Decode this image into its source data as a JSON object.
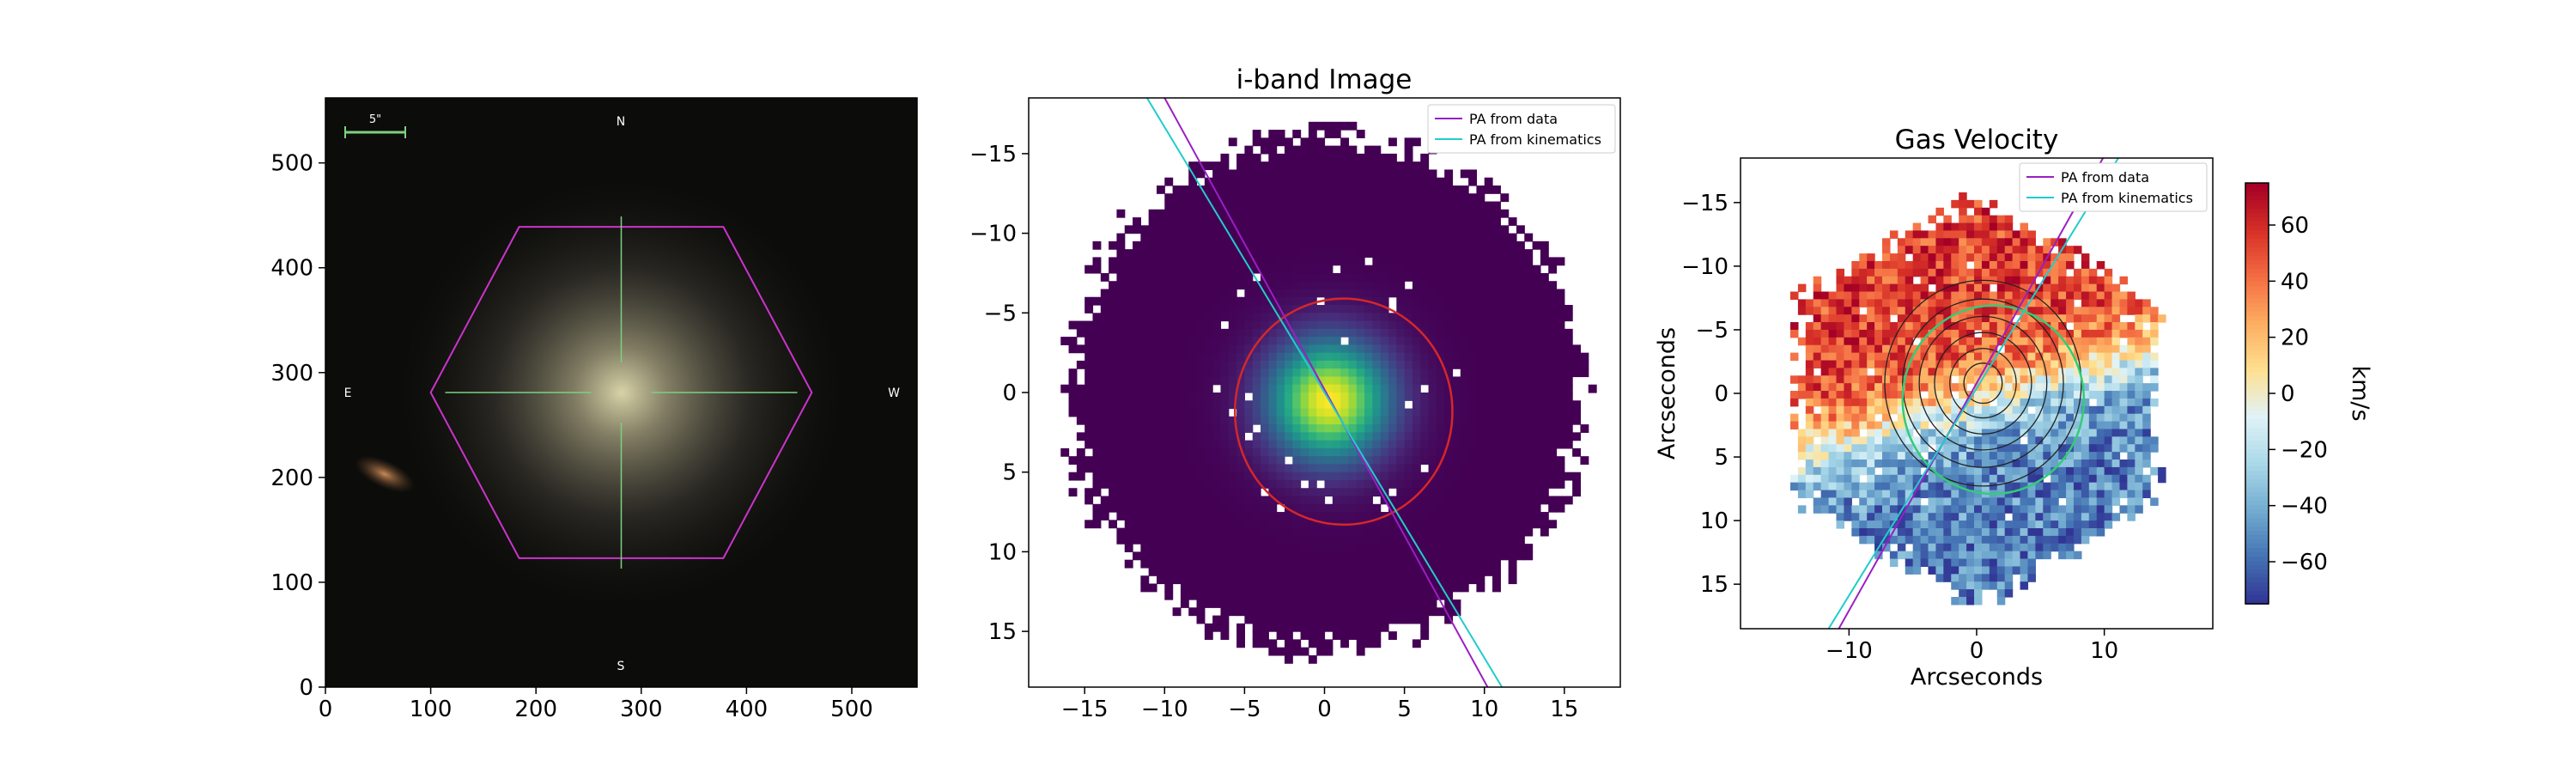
{
  "chart_data": [
    {
      "type": "image",
      "title": "",
      "xlim": [
        0,
        562
      ],
      "ylim": [
        562,
        0
      ],
      "xticks": [
        0,
        100,
        200,
        300,
        400,
        500
      ],
      "yticks": [
        0,
        100,
        200,
        300,
        400,
        500
      ],
      "background": "#0c0c0a",
      "scale_bar_label": "5\"",
      "compass": {
        "n": "N",
        "s": "S",
        "e": "E",
        "w": "W"
      },
      "galaxy_center": [
        281,
        281
      ],
      "hexagon_color": "#cc33cc",
      "hexagon": [
        [
          100,
          281
        ],
        [
          184,
          123
        ],
        [
          378,
          123
        ],
        [
          462,
          281
        ],
        [
          378,
          439
        ],
        [
          184,
          439
        ]
      ],
      "crosshair_color": "#7fd07f"
    },
    {
      "type": "heatmap",
      "title": "i-band Image",
      "xlim": [
        -18.5,
        18.5
      ],
      "ylim": [
        -18.5,
        18.5
      ],
      "y_inverted": true,
      "xticks": [
        -15,
        -10,
        -5,
        0,
        5,
        10,
        15
      ],
      "yticks": [
        -15,
        -10,
        -5,
        0,
        5,
        10,
        15
      ],
      "colormap": "viridis",
      "footprint_radius": 16,
      "peak": [
        0.3,
        0.5
      ],
      "ellipse": {
        "center": [
          1.2,
          1.2
        ],
        "rx": 6.8,
        "ry": 7.1,
        "color": "#d62728"
      },
      "legend": {
        "position": "top-right",
        "entries": [
          {
            "label": "PA from data",
            "color": "#9a1fc4"
          },
          {
            "label": "PA from kinematics",
            "color": "#22cccc"
          }
        ]
      },
      "pa_lines": [
        {
          "name": "PA from data",
          "x1": -10.0,
          "y1": -18.5,
          "x2": 10.2,
          "y2": 18.5
        },
        {
          "name": "PA from kinematics",
          "x1": -11.1,
          "y1": -18.5,
          "x2": 11.1,
          "y2": 18.5
        }
      ]
    },
    {
      "type": "heatmap",
      "title": "Gas Velocity",
      "xlabel": "Arcseconds",
      "ylabel": "Arcseconds",
      "xlim": [
        -18.5,
        18.5
      ],
      "ylim": [
        -18.5,
        18.5
      ],
      "xticks": [
        -10,
        0,
        10
      ],
      "yticks": [
        -15,
        -10,
        -5,
        0,
        5,
        10,
        15
      ],
      "colormap": "RdYlBu_r",
      "value_range": [
        -75,
        75
      ],
      "footprint_radius": 16,
      "ellipse": {
        "center": [
          1.3,
          0.5
        ],
        "rx": 7.1,
        "ry": 7.4,
        "color": "#33cc77"
      },
      "contour_levels": [
        1.5,
        2.6,
        3.8,
        5.0,
        6.3,
        7.7
      ],
      "legend": {
        "position": "top-right",
        "entries": [
          {
            "label": "PA from data",
            "color": "#9a1fc4"
          },
          {
            "label": "PA from kinematics",
            "color": "#22cccc"
          }
        ]
      },
      "pa_lines": [
        {
          "name": "PA from data",
          "x1": -10.8,
          "y1": 18.5,
          "x2": 9.9,
          "y2": -18.5
        },
        {
          "name": "PA from kinematics",
          "x1": -11.6,
          "y1": 18.5,
          "x2": 11.1,
          "y2": -18.5
        }
      ],
      "colorbar": {
        "label": "km/s",
        "ticks": [
          60,
          40,
          20,
          0,
          -20,
          -40,
          -60
        ],
        "range": [
          -75,
          75
        ]
      }
    }
  ]
}
